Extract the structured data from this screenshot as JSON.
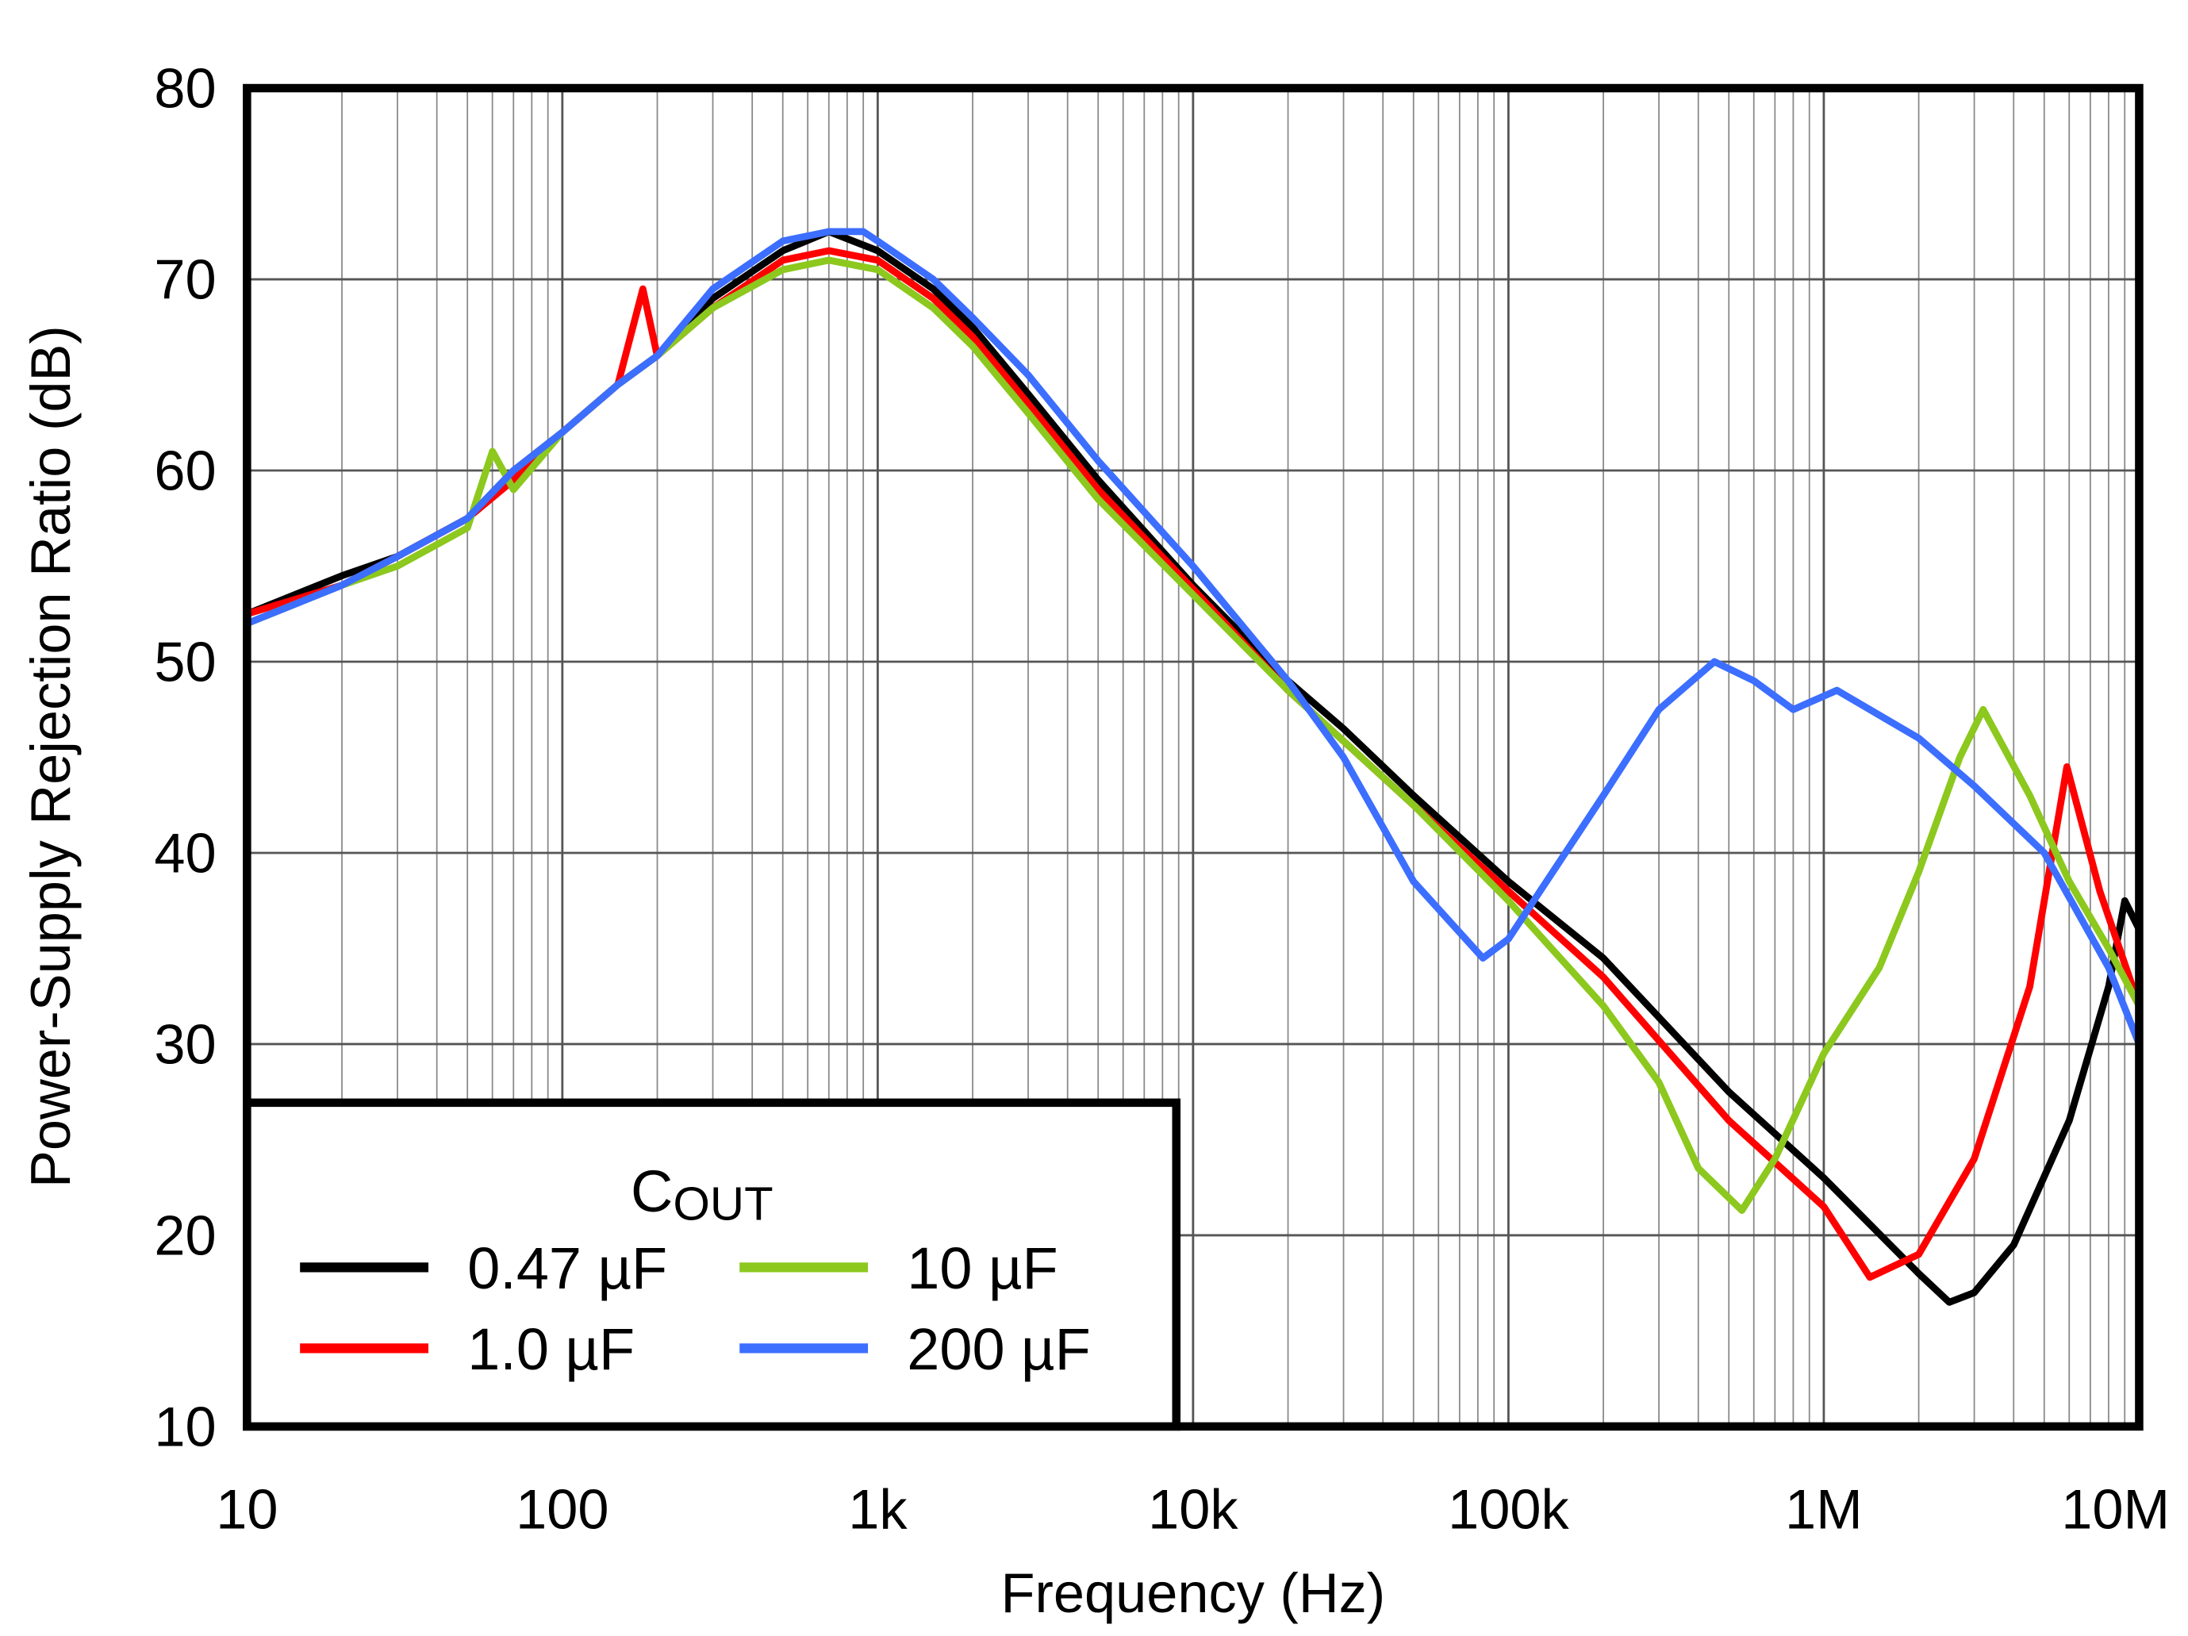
{
  "chart_data": {
    "type": "line",
    "title": "",
    "xlabel": "Frequency (Hz)",
    "ylabel": "Power-Supply Rejection Ratio (dB)",
    "xscale": "log",
    "xlim": [
      10,
      10000000
    ],
    "ylim": [
      10,
      80
    ],
    "grid": true,
    "x_tick_labels": [
      "10",
      "100",
      "1k",
      "10k",
      "100k",
      "1M",
      "10M"
    ],
    "x_tick_values": [
      10,
      100,
      1000,
      10000,
      100000,
      1000000,
      10000000
    ],
    "y_ticks": [
      10,
      20,
      30,
      40,
      50,
      60,
      70,
      80
    ],
    "legend": {
      "title_main": "C",
      "title_sub": "OUT",
      "placement": "bottom-left"
    },
    "series": [
      {
        "name": "0.47 µF",
        "color": "#000000",
        "x": [
          10,
          20,
          30,
          50,
          70,
          100,
          150,
          200,
          300,
          500,
          700,
          1000,
          1500,
          2000,
          3000,
          5000,
          10000,
          20000,
          30000,
          50000,
          100000,
          200000,
          500000,
          1000000,
          2000000,
          2500000,
          3000000,
          4000000,
          6000000,
          8000000,
          9000000,
          10000000
        ],
        "y": [
          52.5,
          54.5,
          55.5,
          57.5,
          60,
          62,
          64.5,
          66,
          69,
          71.5,
          72.5,
          71.5,
          69.5,
          67.5,
          64,
          59.5,
          54,
          49,
          46.5,
          43,
          38.5,
          34.5,
          27.5,
          23,
          18,
          16.5,
          17,
          19.5,
          26,
          33,
          37.5,
          36
        ]
      },
      {
        "name": "1.0 µF",
        "color": "#ff0000",
        "x": [
          10,
          20,
          30,
          50,
          70,
          100,
          150,
          180,
          200,
          300,
          500,
          700,
          1000,
          1500,
          2000,
          3000,
          5000,
          10000,
          20000,
          50000,
          100000,
          200000,
          500000,
          1000000,
          1400000,
          2000000,
          3000000,
          4500000,
          5900000,
          7500000,
          10000000
        ],
        "y": [
          52.5,
          54,
          55.5,
          57.5,
          59.5,
          62,
          64.5,
          69.5,
          66,
          68.5,
          71,
          71.5,
          71,
          69,
          67,
          63.5,
          59,
          53.8,
          48.5,
          42.5,
          38,
          33.5,
          26,
          21.5,
          17.8,
          19,
          24,
          33,
          44.5,
          38,
          32
        ]
      },
      {
        "name": "10 µF",
        "color": "#8cc81e",
        "x": [
          10,
          20,
          30,
          50,
          60,
          70,
          100,
          150,
          200,
          300,
          500,
          700,
          1000,
          1500,
          2000,
          3000,
          5000,
          10000,
          20000,
          50000,
          100000,
          200000,
          300000,
          400000,
          550000,
          700000,
          1000000,
          1500000,
          2000000,
          2700000,
          3200000,
          4500000,
          6000000,
          8000000,
          10000000
        ],
        "y": [
          52,
          54,
          55,
          57,
          61,
          59,
          62,
          64.5,
          66,
          68.5,
          70.5,
          71,
          70.5,
          68.5,
          66.5,
          63,
          58.5,
          53.5,
          48.5,
          42.5,
          37.5,
          32,
          28,
          23.5,
          21.3,
          24,
          29.5,
          34,
          39,
          45,
          47.5,
          43,
          38.5,
          35,
          32
        ]
      },
      {
        "name": "200 µF",
        "color": "#3c6eff",
        "x": [
          10,
          20,
          30,
          50,
          70,
          100,
          150,
          200,
          300,
          500,
          700,
          900,
          1000,
          1500,
          2000,
          3000,
          5000,
          10000,
          20000,
          30000,
          50000,
          83000,
          100000,
          200000,
          300000,
          450000,
          600000,
          800000,
          1100000,
          2000000,
          3000000,
          5000000,
          8000000,
          10000000
        ],
        "y": [
          52,
          54,
          55.5,
          57.5,
          60,
          62,
          64.5,
          66,
          69.5,
          72,
          72.5,
          72.5,
          72,
          70,
          68,
          65,
          60.5,
          55,
          49,
          45,
          38.5,
          34.5,
          35.5,
          43,
          47.5,
          50,
          49,
          47.5,
          48.5,
          46,
          43.5,
          40,
          34,
          30
        ]
      }
    ]
  }
}
